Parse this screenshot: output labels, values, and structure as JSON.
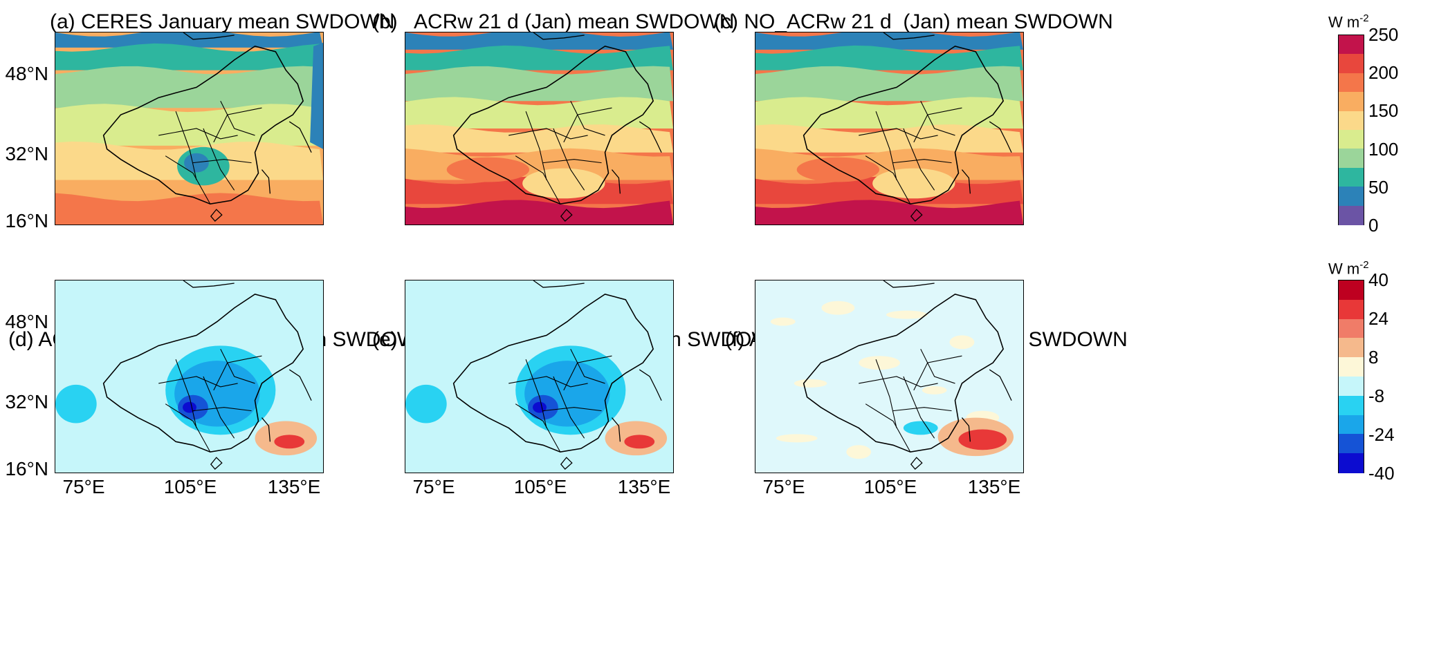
{
  "panels": [
    {
      "id": "a",
      "title": "(a) CERES January mean SWDOWN",
      "kind": "abs"
    },
    {
      "id": "b",
      "title": "(b)   ACRw 21 d (Jan) mean SWDOWN",
      "kind": "abs"
    },
    {
      "id": "c",
      "title": "(c) NO_ACRw 21 d  (Jan) mean SWDOWN",
      "kind": "abs"
    },
    {
      "id": "d",
      "title": "(d) ACRw - NO_ACRw 21 d  mean SWDOWN",
      "kind": "diff"
    },
    {
      "id": "e",
      "title": "(e) ARIw - NO_ACRw 21 d  mean SWDOWN",
      "kind": "diff"
    },
    {
      "id": "f",
      "title": "(f) ACIw - NO_ACRw 21 d mean SWDOWN",
      "kind": "diff"
    }
  ],
  "lat_labels": [
    "48°N",
    "32°N",
    "16°N"
  ],
  "lon_labels": [
    "75°E",
    "105°E",
    "135°E"
  ],
  "colorbar_top": {
    "unit_main": "W m",
    "unit_exp": "-2",
    "ticks": [
      "250",
      "200",
      "150",
      "100",
      "50",
      "0"
    ],
    "colors": [
      "#c2134b",
      "#e8473d",
      "#f4764a",
      "#f9ad61",
      "#fbd98a",
      "#d9ec8e",
      "#9bd59a",
      "#2eb69f",
      "#2c82b8",
      "#6b54a5"
    ]
  },
  "colorbar_bottom": {
    "unit_main": "W m",
    "unit_exp": "-2",
    "ticks": [
      "40",
      "24",
      "8",
      "-8",
      "-24",
      "-40"
    ],
    "colors": [
      "#be0020",
      "#e83838",
      "#f07c68",
      "#f5b98c",
      "#fdf7d8",
      "#c6f6fa",
      "#29d2f2",
      "#1aa6ea",
      "#1553d6",
      "#0c0cd0"
    ]
  }
}
